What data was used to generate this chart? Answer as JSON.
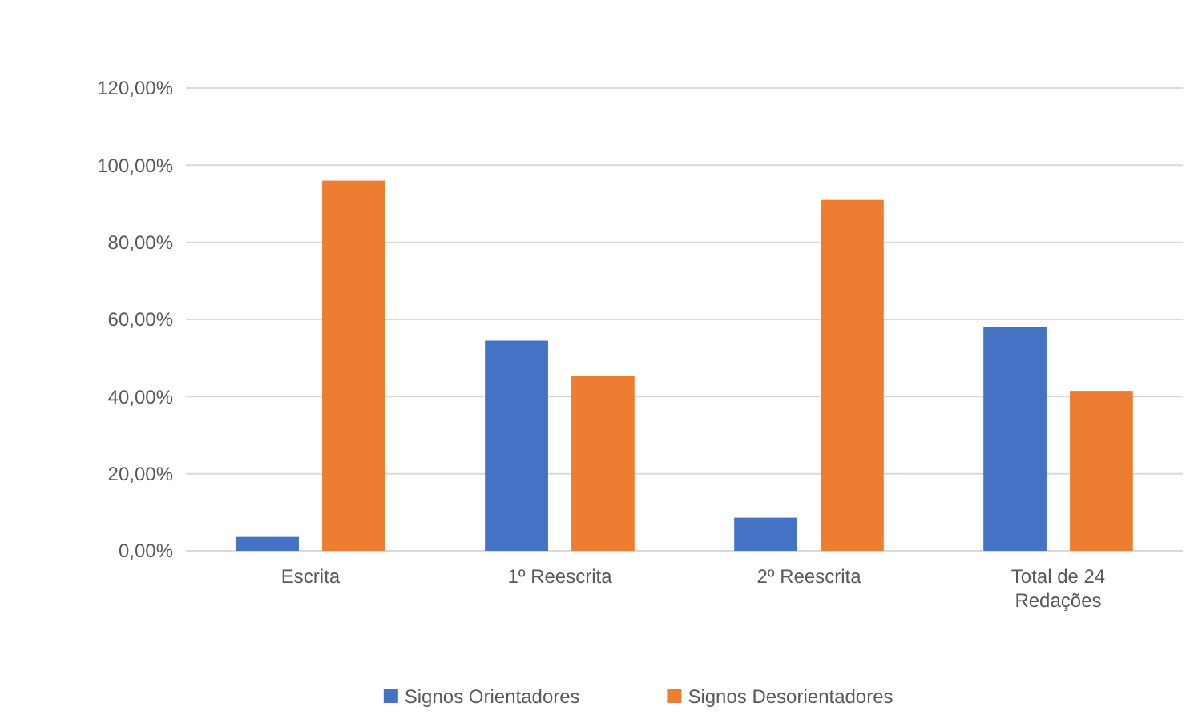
{
  "chart_data": {
    "type": "bar",
    "categories": [
      "Escrita",
      "1º Reescrita",
      "2º Reescrita",
      "Total de 24 Redações"
    ],
    "series": [
      {
        "name": "Signos Orientadores",
        "color": "#4472c4",
        "values": [
          3.6,
          54.5,
          8.6,
          58.1
        ]
      },
      {
        "name": "Signos Desorientadores",
        "color": "#ed7d31",
        "values": [
          96,
          45.3,
          91,
          41.5
        ]
      }
    ],
    "ylim": [
      0,
      120
    ],
    "yticks": [
      {
        "value": 0,
        "label": "0,00%"
      },
      {
        "value": 20,
        "label": "20,00%"
      },
      {
        "value": 40,
        "label": "40,00%"
      },
      {
        "value": 60,
        "label": "60,00%"
      },
      {
        "value": 80,
        "label": "80,00%"
      },
      {
        "value": 100,
        "label": "100,00%"
      },
      {
        "value": 120,
        "label": "120,00%"
      }
    ],
    "grid": "y",
    "legend": "bottom"
  }
}
